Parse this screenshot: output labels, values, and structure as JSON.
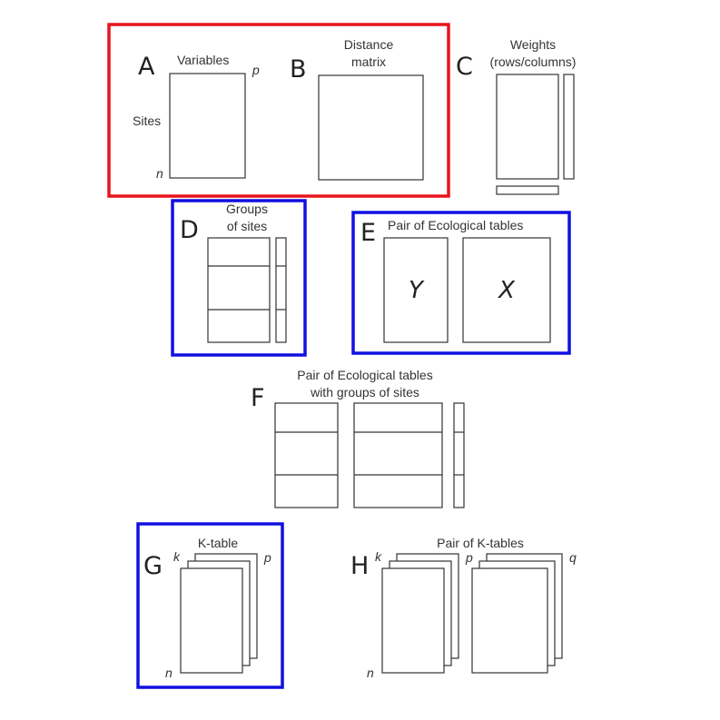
{
  "panels": {
    "A": {
      "letter": "A",
      "columns_label": "Variables",
      "rows_label": "Sites",
      "p": "p",
      "n": "n"
    },
    "B": {
      "letter": "B",
      "title_line1": "Distance",
      "title_line2": "matrix"
    },
    "C": {
      "letter": "C",
      "title_line1": "Weights",
      "title_line2": "(rows/columns)"
    },
    "D": {
      "letter": "D",
      "title_line1": "Groups",
      "title_line2": "of sites"
    },
    "E": {
      "letter": "E",
      "title": "Pair of Ecological tables",
      "y": "Y",
      "x": "X"
    },
    "F": {
      "letter": "F",
      "title_line1": "Pair of Ecological tables",
      "title_line2": "with groups of sites"
    },
    "G": {
      "letter": "G",
      "title": "K-table",
      "k": "k",
      "p": "p",
      "n": "n"
    },
    "H": {
      "letter": "H",
      "title": "Pair of K-tables",
      "k": "k",
      "p": "p",
      "q": "q",
      "n": "n"
    }
  },
  "highlight_colors": {
    "red": "#e8141c",
    "blue": "#1010e0"
  }
}
